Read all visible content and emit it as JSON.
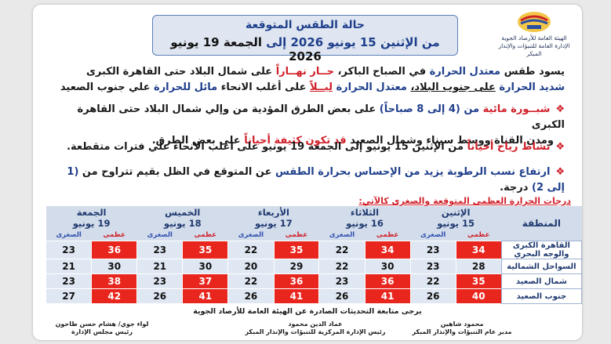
{
  "header": {
    "title": "حالة الطقس المتوقعة",
    "range_from": "من الإثنين 15 يونيو 2026",
    "range_to_word": "إلى",
    "range_to": "الجمعة 19 يونيو 2026"
  },
  "logo": {
    "line1": "الهيئة العامة للأرصاد الجوية",
    "line2": "الإدارة العامة للتنبؤات والإنذار المبكر"
  },
  "intro": {
    "p1a": "يسود طقس",
    "p1b": "معتدل الحرارة",
    "p1c": "في الصباح الباكر،",
    "p1d": "حــار نهــاراً",
    "p1e": "على شمال البلاد حتى القاهرة الكبرى",
    "p2a": "شديد الحرارة",
    "p2b": "على جنوب البلاد،",
    "p2c": "معتدل الحرارة",
    "p2d": "ليــلاً",
    "p2e": "على أغلب الانحاء",
    "p2f": "مائل للحرارة",
    "p2g": "علي جنوب الصعيد"
  },
  "bullets": {
    "b1a": "شبــورة مائية",
    "b1b": "من (4 إلى 8 صباحاً)",
    "b1c": "على بعض الطرق المؤدية من وإلي شمال البلاد حتى القاهرة الكبرى",
    "b1d": "ومدن القناة ووسط سيناء وشمال الصعيد",
    "b1e": "قد تكون كثيفة أحياناً",
    "b1f": "على بعض الطرق.",
    "b2a": "نشاط رياح أحياناً",
    "b2b": "من الإثنين 15 يونيو إلى الجمعة 19 يونيو على اغلب الانحاء علي فترات متقطعة.",
    "b3a": "ارتفاع نسب الرطوبة يزيد من الإحساس بحرارة الطقس",
    "b3b": "عن المتوقع في الظل بقيم تتراوح من",
    "b3c": "(1 إلى 2)",
    "b3d": "درجة."
  },
  "table": {
    "caption": "درجات الحرارة العظمى المتوقعة والصغرى كالآتي:",
    "region_header": "المنطقة",
    "high_label": "عظمى",
    "low_label": "الصغرى",
    "days": [
      {
        "name": "الإثنين",
        "date": "15 يونيو"
      },
      {
        "name": "الثلاثاء",
        "date": "16 يونيو"
      },
      {
        "name": "الأربعاء",
        "date": "17 يونيو"
      },
      {
        "name": "الخميس",
        "date": "18 يونيو"
      },
      {
        "name": "الجمعة",
        "date": "19 يونيو"
      }
    ],
    "rows": [
      {
        "region": "القاهرة الكبرى والوجه البحري",
        "hi": [
          "34",
          "34",
          "35",
          "35",
          "36"
        ],
        "lo": [
          "23",
          "22",
          "22",
          "23",
          "23"
        ]
      },
      {
        "region": "السواحل الشمالية",
        "hi": [
          "28",
          "30",
          "29",
          "30",
          "30"
        ],
        "lo": [
          "23",
          "22",
          "20",
          "21",
          "21"
        ]
      },
      {
        "region": "شمال الصعيد",
        "hi": [
          "35",
          "36",
          "36",
          "37",
          "38"
        ],
        "lo": [
          "22",
          "23",
          "22",
          "23",
          "23"
        ]
      },
      {
        "region": "جنوب الصعيد",
        "hi": [
          "40",
          "41",
          "41",
          "41",
          "42"
        ],
        "lo": [
          "26",
          "26",
          "26",
          "26",
          "27"
        ]
      }
    ]
  },
  "footer": {
    "note": "يرجى متابعة التحديثات الصادرة عن الهيئة العامة للأرصاد الجوية",
    "sig_left_name": "لواء جوي/ هشام حسن طاحون",
    "sig_left_title": "رئيس مجلس الإدارة",
    "sig_mid_name": "عماد الدين محمود",
    "sig_mid_title": "رئيس الإدارة المركزية للتنبؤات والإنذار المبكر",
    "sig_right_name": "محمود شاهين",
    "sig_right_title": "مدير عام التنبؤات والإنذار المبكر"
  },
  "colors": {
    "accent_blue": "#1f3f8c",
    "alert_red": "#d0202a",
    "high_cell": "#e8261e"
  }
}
